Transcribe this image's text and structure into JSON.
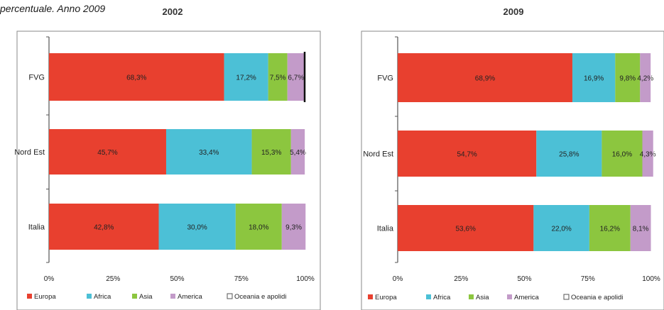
{
  "caption": "percentuale. Anno 2009",
  "legend": [
    "Europa",
    "Africa",
    "Asia",
    "America",
    "Oceania e apolidi"
  ],
  "colors": {
    "Europa": "#e8402f",
    "Africa": "#4cc0d6",
    "Asia": "#8cc63f",
    "America": "#c39bc9",
    "Oceania e apolidi": "#ffffff",
    "frame": "#8a8a8a",
    "axis": "#555555"
  },
  "chart_data": [
    {
      "type": "bar",
      "orientation": "horizontal",
      "stacked": "percent",
      "title": "2002",
      "categories": [
        "FVG",
        "Nord Est",
        "Italia"
      ],
      "xlim": [
        0,
        100
      ],
      "x_ticks": [
        "0%",
        "25%",
        "50%",
        "75%",
        "100%"
      ],
      "legend_position": "bottom",
      "grid": false,
      "series": [
        {
          "name": "Europa",
          "values": [
            68.3,
            45.7,
            42.8
          ],
          "labels": [
            "68,3%",
            "45,7%",
            "42,8%"
          ]
        },
        {
          "name": "Africa",
          "values": [
            17.2,
            33.4,
            30.0
          ],
          "labels": [
            "17,2%",
            "33,4%",
            "30,0%"
          ]
        },
        {
          "name": "Asia",
          "values": [
            7.5,
            15.3,
            18.0
          ],
          "labels": [
            "7,5%",
            "15,3%",
            "18,0%"
          ]
        },
        {
          "name": "America",
          "values": [
            6.7,
            5.4,
            9.3
          ],
          "labels": [
            "6,7%",
            "5,4%",
            "9,3%"
          ]
        },
        {
          "name": "Oceania e apolidi",
          "values": [
            0.3,
            0.2,
            0.1
          ],
          "labels": [
            "",
            "",
            ""
          ]
        }
      ]
    },
    {
      "type": "bar",
      "orientation": "horizontal",
      "stacked": "percent",
      "title": "2009",
      "categories": [
        "FVG",
        "Nord Est",
        "Italia"
      ],
      "xlim": [
        0,
        100
      ],
      "x_ticks": [
        "0%",
        "25%",
        "50%",
        "75%",
        "100%"
      ],
      "legend_position": "bottom",
      "grid": false,
      "series": [
        {
          "name": "Europa",
          "values": [
            68.9,
            54.7,
            53.6
          ],
          "labels": [
            "68,9%",
            "54,7%",
            "53,6%"
          ]
        },
        {
          "name": "Africa",
          "values": [
            16.9,
            25.8,
            22.0
          ],
          "labels": [
            "16,9%",
            "25,8%",
            "22,0%"
          ]
        },
        {
          "name": "Asia",
          "values": [
            9.8,
            16.0,
            16.2
          ],
          "labels": [
            "9,8%",
            "16,0%",
            "16,2%"
          ]
        },
        {
          "name": "America",
          "values": [
            4.2,
            4.3,
            8.1
          ],
          "labels": [
            "4,2%",
            "4,3%",
            "8,1%"
          ]
        },
        {
          "name": "Oceania e apolidi",
          "values": [
            0.2,
            0.2,
            0.1
          ],
          "labels": [
            "",
            "",
            ""
          ]
        }
      ]
    }
  ]
}
